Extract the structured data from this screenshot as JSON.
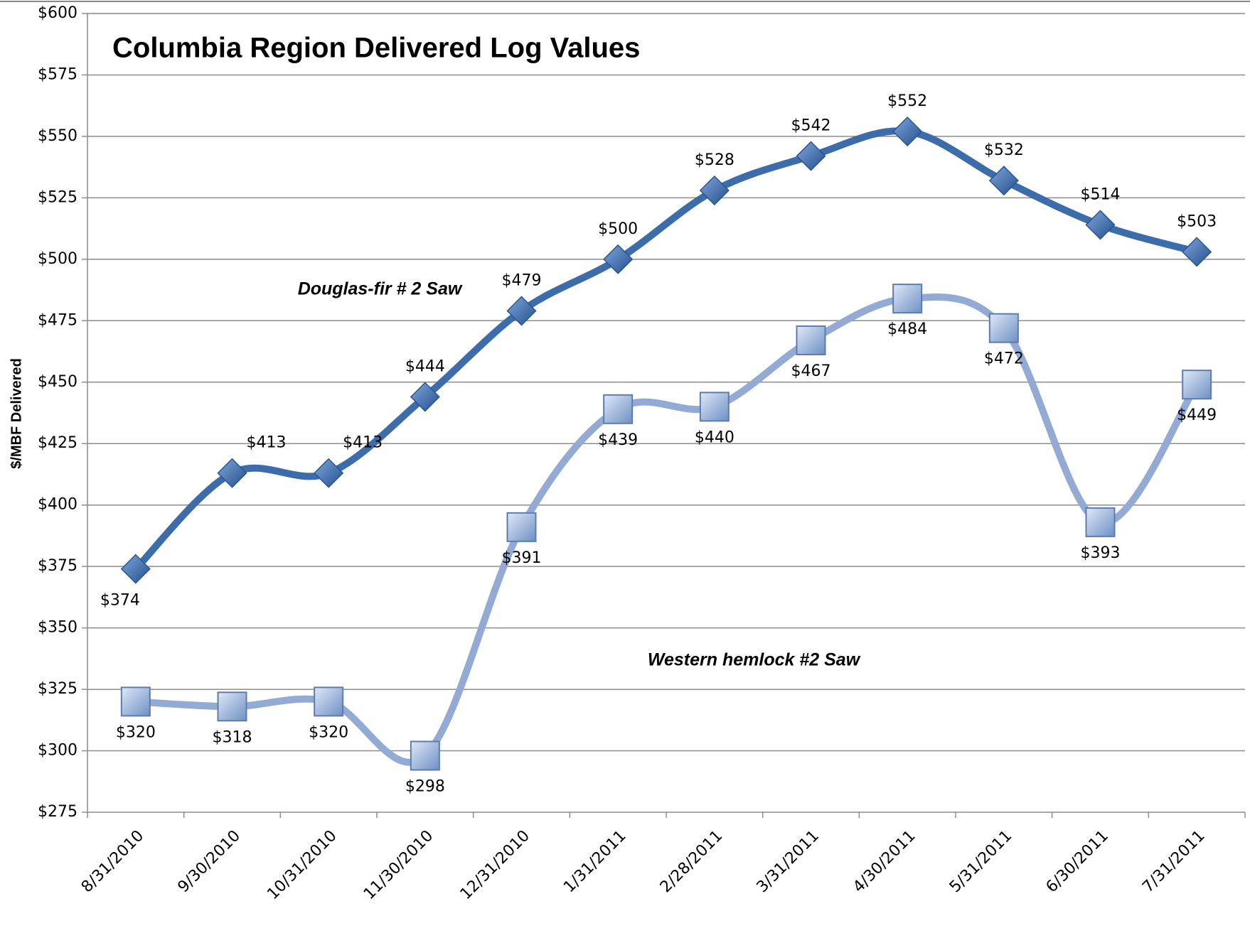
{
  "chart_data": {
    "type": "line",
    "title": "Columbia Region Delivered Log Values",
    "y_label": "$/MBF Delivered",
    "categories": [
      "8/31/2010",
      "9/30/2010",
      "10/31/2010",
      "11/30/2010",
      "12/31/2010",
      "1/31/2011",
      "2/28/2011",
      "3/31/2011",
      "4/30/2011",
      "5/31/2011",
      "6/30/2011",
      "7/31/2011"
    ],
    "series": [
      {
        "name": "Douglas-fir # 2 Saw",
        "color": "#3d6cab",
        "marker": "diamond",
        "values": [
          374,
          413,
          413,
          444,
          479,
          500,
          528,
          542,
          552,
          532,
          514,
          503
        ],
        "value_labels": [
          "$374",
          "$413",
          "$413",
          "$444",
          "$479",
          "$500",
          "$528",
          "$542",
          "$552",
          "$532",
          "$514",
          "$503"
        ]
      },
      {
        "name": "Western hemlock #2 Saw",
        "color": "#93abd4",
        "marker": "square",
        "values": [
          320,
          318,
          320,
          298,
          391,
          439,
          440,
          467,
          484,
          472,
          393,
          449
        ],
        "value_labels": [
          "$320",
          "$318",
          "$320",
          "$298",
          "$391",
          "$439",
          "$440",
          "$467",
          "$484",
          "$472",
          "$393",
          "$449"
        ]
      }
    ],
    "ylim": [
      275,
      600
    ],
    "yticks": [
      {
        "value": 275,
        "label": "$275"
      },
      {
        "value": 300,
        "label": "$300"
      },
      {
        "value": 325,
        "label": "$325"
      },
      {
        "value": 350,
        "label": "$350"
      },
      {
        "value": 375,
        "label": "$375"
      },
      {
        "value": 400,
        "label": "$400"
      },
      {
        "value": 425,
        "label": "$425"
      },
      {
        "value": 450,
        "label": "$450"
      },
      {
        "value": 475,
        "label": "$475"
      },
      {
        "value": 500,
        "label": "$500"
      },
      {
        "value": 525,
        "label": "$525"
      },
      {
        "value": 550,
        "label": "$550"
      },
      {
        "value": 575,
        "label": "$575"
      },
      {
        "value": 600,
        "label": "$600"
      }
    ],
    "grid": true
  }
}
